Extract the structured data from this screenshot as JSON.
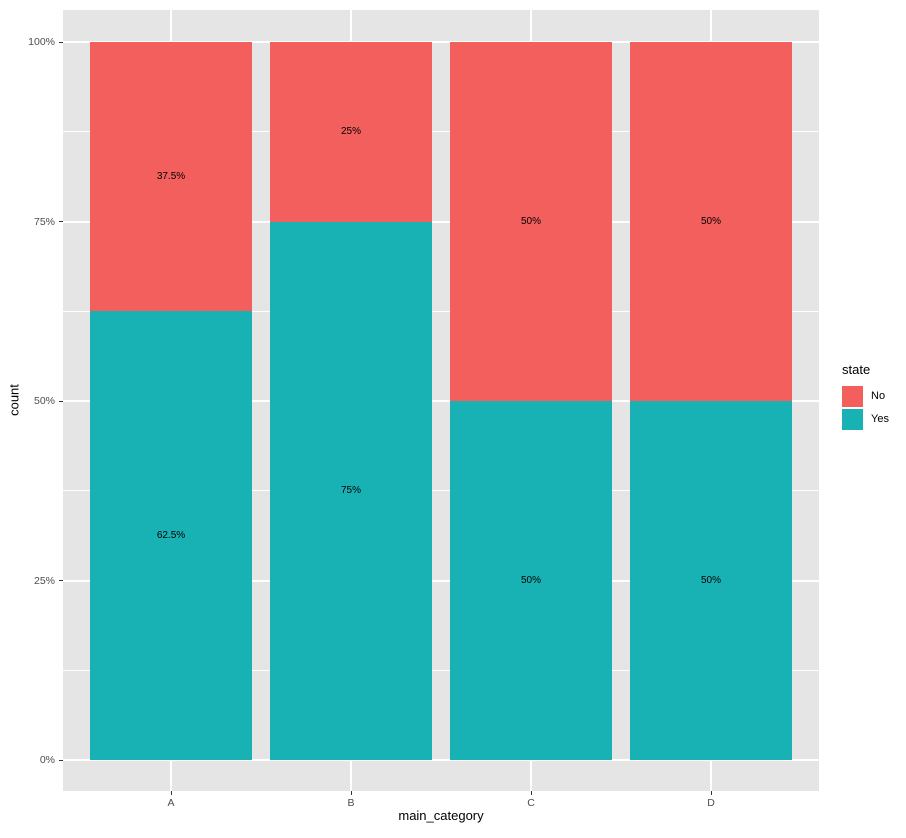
{
  "figure": {
    "background": "#FFFFFF",
    "panel_background": "#E5E5E5",
    "grid_color": "#FFFFFF",
    "tick_label_color": "#4D4D4D",
    "text_color": "#000000"
  },
  "chart_data": {
    "type": "bar",
    "subtype": "stacked-percent",
    "title": "",
    "xlabel": "main_category",
    "ylabel": "count",
    "categories": [
      "A",
      "B",
      "C",
      "D"
    ],
    "series": [
      {
        "name": "Yes",
        "color": "#18B2B5",
        "values": [
          62.5,
          75,
          50,
          50
        ],
        "labels": [
          "62.5%",
          "75%",
          "50%",
          "50%"
        ]
      },
      {
        "name": "No",
        "color": "#F25F5C",
        "values": [
          37.5,
          25,
          50,
          50
        ],
        "labels": [
          "37.5%",
          "25%",
          "50%",
          "50%"
        ]
      }
    ],
    "y_ticks": [
      {
        "value": 0,
        "label": "0%"
      },
      {
        "value": 25,
        "label": "25%"
      },
      {
        "value": 50,
        "label": "50%"
      },
      {
        "value": 75,
        "label": "75%"
      },
      {
        "value": 100,
        "label": "100%"
      }
    ],
    "ylim": [
      0,
      100
    ],
    "grid": "major-and-minor",
    "legend": {
      "title": "state",
      "position": "right",
      "entries": [
        {
          "label": "No",
          "color": "#F25F5C"
        },
        {
          "label": "Yes",
          "color": "#18B2B5"
        }
      ]
    }
  }
}
